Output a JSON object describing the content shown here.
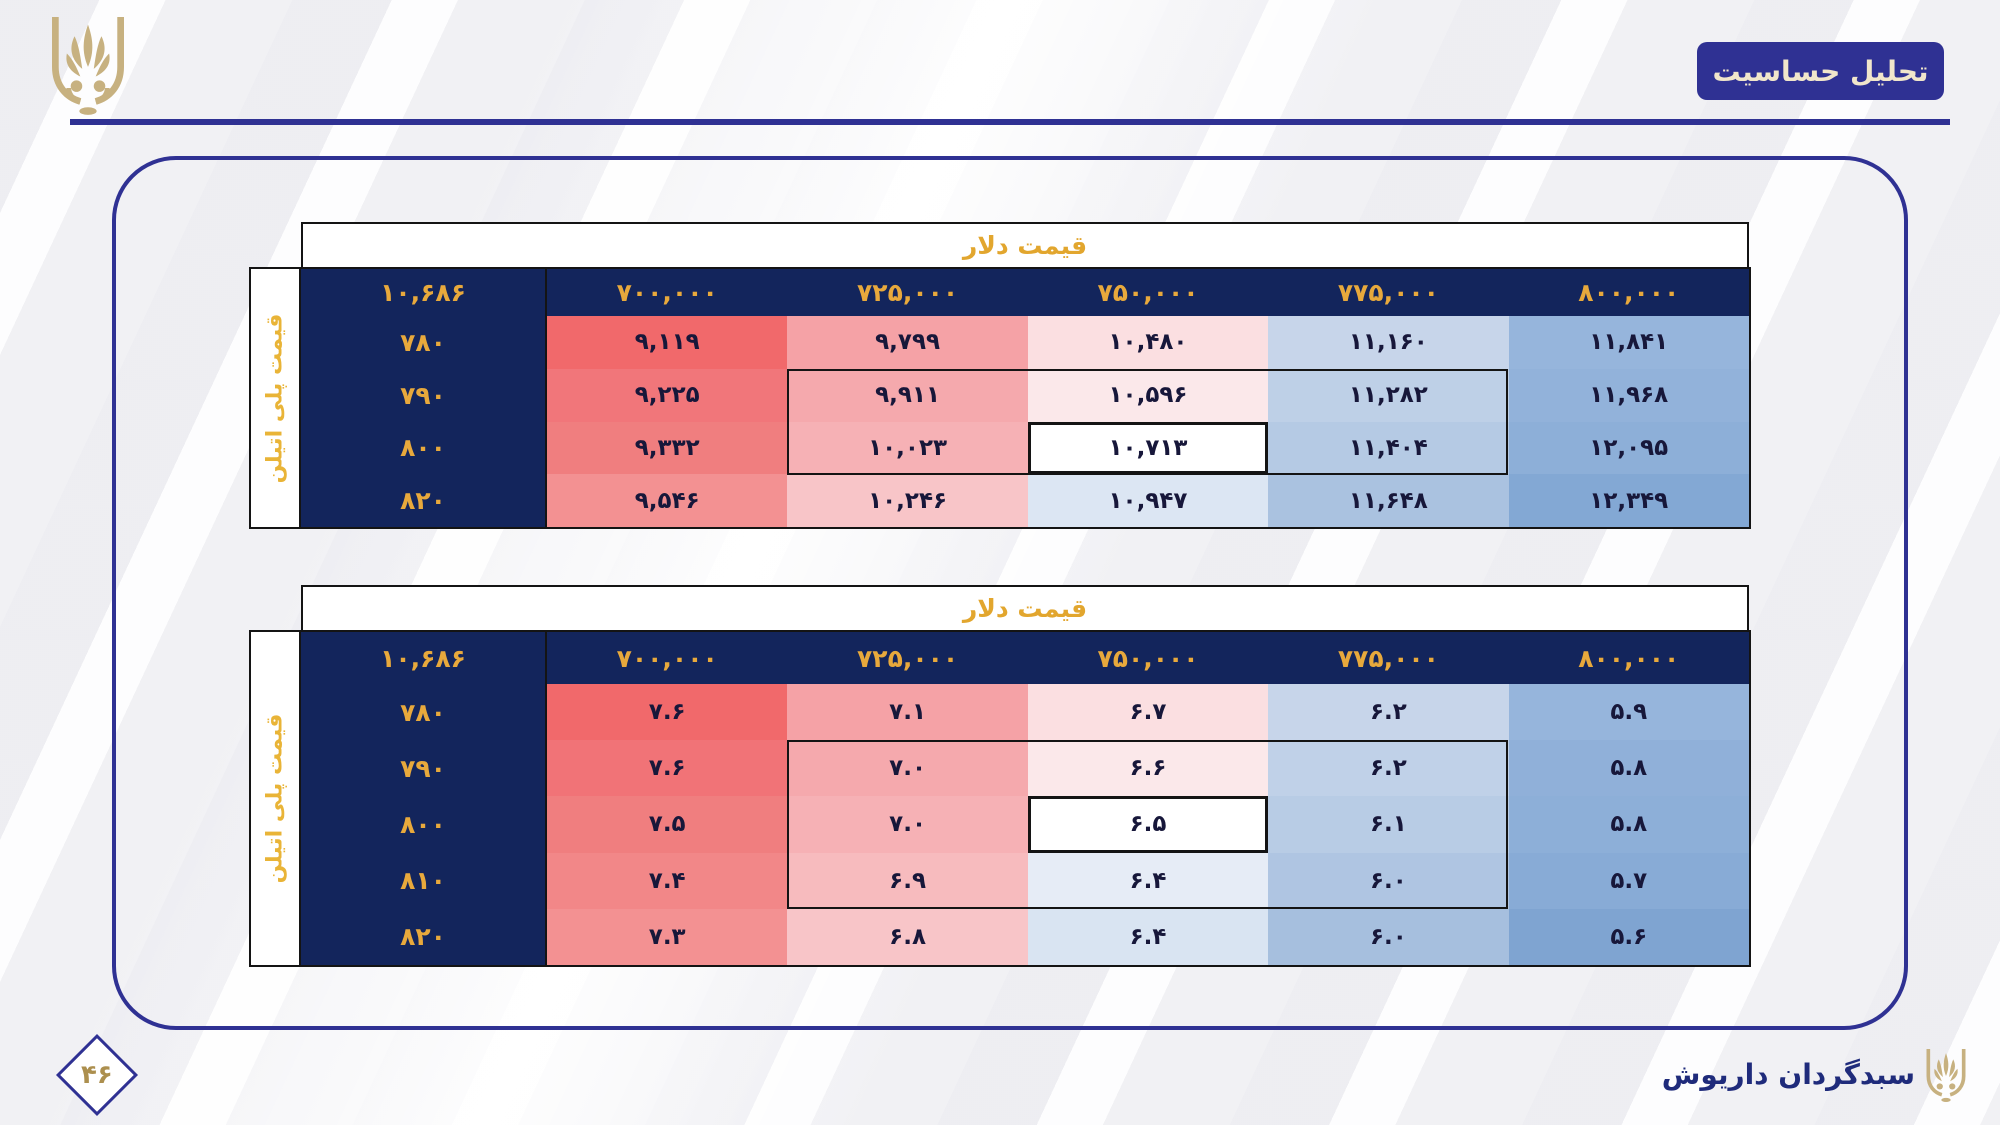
{
  "slide": {
    "title_badge": "تحلیل حساسیت",
    "page_number": "۴۶",
    "company_name": "سبدگردان داریوش",
    "logo": "palmette-emblem"
  },
  "colors": {
    "navy_accent": "#2F3193",
    "table_header_navy": "#13255C",
    "gold_text": "#E8A93C",
    "badge_text": "#F1E6CB",
    "logo_gold": "#C7B180",
    "page_number_gold": "#AC8F4E",
    "heat_red_max": "#F1696B",
    "heat_blue_max": "#7FA4D1"
  },
  "tables": [
    {
      "title": "قیمت دلار",
      "side_label": "قیمت پلی اتیلن",
      "corner_value": "۱۰,۶۸۶",
      "corner_value_numeric": 10686,
      "col_headers": [
        "۷۰۰,۰۰۰",
        "۷۲۵,۰۰۰",
        "۷۵۰,۰۰۰",
        "۷۷۵,۰۰۰",
        "۸۰۰,۰۰۰"
      ],
      "col_headers_numeric": [
        700000,
        725000,
        750000,
        775000,
        800000
      ],
      "row_headers": [
        "۷۸۰",
        "۷۹۰",
        "۸۰۰",
        "۸۲۰"
      ],
      "row_headers_numeric": [
        780,
        790,
        800,
        820
      ],
      "rows": [
        [
          "۹,۱۱۹",
          "۹,۷۹۹",
          "۱۰,۴۸۰",
          "۱۱,۱۶۰",
          "۱۱,۸۴۱"
        ],
        [
          "۹,۲۲۵",
          "۹,۹۱۱",
          "۱۰,۵۹۶",
          "۱۱,۲۸۲",
          "۱۱,۹۶۸"
        ],
        [
          "۹,۳۳۲",
          "۱۰,۰۲۳",
          "۱۰,۷۱۳",
          "۱۱,۴۰۴",
          "۱۲,۰۹۵"
        ],
        [
          "۹,۵۴۶",
          "۱۰,۲۴۶",
          "۱۰,۹۴۷",
          "۱۱,۶۴۸",
          "۱۲,۳۴۹"
        ]
      ],
      "rows_numeric": [
        [
          9119,
          9799,
          10480,
          11160,
          11841
        ],
        [
          9225,
          9911,
          10596,
          11282,
          11968
        ],
        [
          9332,
          10023,
          10713,
          11404,
          12095
        ],
        [
          9546,
          10246,
          10947,
          11648,
          12349
        ]
      ],
      "cell_colors": [
        [
          "#f1696b",
          "#f5a2a6",
          "#fbdfe1",
          "#c7d5ea",
          "#96b5dc"
        ],
        [
          "#f1767a",
          "#f5a9ad",
          "#fbe8ea",
          "#bed0e7",
          "#92b2da"
        ],
        [
          "#f07e7f",
          "#f6b1b5",
          "#ffffff",
          "#b5cae4",
          "#8dafd8"
        ],
        [
          "#f39192",
          "#f8c5c8",
          "#dce6f3",
          "#aac2e0",
          "#83a8d4"
        ]
      ],
      "highlight_cell": {
        "row": 2,
        "col": 2
      },
      "outline_range": {
        "row_start": 1,
        "row_end": 2,
        "col_start": 1,
        "col_end": 3
      }
    },
    {
      "title": "قیمت دلار",
      "side_label": "قیمت پلی اتیلن",
      "corner_value": "۱۰,۶۸۶",
      "corner_value_numeric": 10686,
      "col_headers": [
        "۷۰۰,۰۰۰",
        "۷۲۵,۰۰۰",
        "۷۵۰,۰۰۰",
        "۷۷۵,۰۰۰",
        "۸۰۰,۰۰۰"
      ],
      "col_headers_numeric": [
        700000,
        725000,
        750000,
        775000,
        800000
      ],
      "row_headers": [
        "۷۸۰",
        "۷۹۰",
        "۸۰۰",
        "۸۱۰",
        "۸۲۰"
      ],
      "row_headers_numeric": [
        780,
        790,
        800,
        810,
        820
      ],
      "rows": [
        [
          "۷.۶",
          "۷.۱",
          "۶.۷",
          "۶.۲",
          "۵.۹"
        ],
        [
          "۷.۶",
          "۷.۰",
          "۶.۶",
          "۶.۲",
          "۵.۸"
        ],
        [
          "۷.۵",
          "۷.۰",
          "۶.۵",
          "۶.۱",
          "۵.۸"
        ],
        [
          "۷.۴",
          "۶.۹",
          "۶.۴",
          "۶.۰",
          "۵.۷"
        ],
        [
          "۷.۳",
          "۶.۸",
          "۶.۴",
          "۶.۰",
          "۵.۶"
        ]
      ],
      "rows_numeric": [
        [
          7.6,
          7.1,
          6.7,
          6.2,
          5.9
        ],
        [
          7.6,
          7.0,
          6.6,
          6.2,
          5.8
        ],
        [
          7.5,
          7.0,
          6.5,
          6.1,
          5.8
        ],
        [
          7.4,
          6.9,
          6.4,
          6.0,
          5.7
        ],
        [
          7.3,
          6.8,
          6.4,
          6.0,
          5.6
        ]
      ],
      "cell_colors": [
        [
          "#f1696b",
          "#f5a2a6",
          "#fbdfe1",
          "#c7d5ea",
          "#96b5dc"
        ],
        [
          "#f17377",
          "#f5a9ad",
          "#fbe8ea",
          "#c0d1e8",
          "#90b0d9"
        ],
        [
          "#f07e7f",
          "#f6b1b5",
          "#ffffff",
          "#b8cce5",
          "#8dafd8"
        ],
        [
          "#f28788",
          "#f7bbbe",
          "#e6ecf6",
          "#afc5e2",
          "#88abd6"
        ],
        [
          "#f39192",
          "#f8c5c8",
          "#d9e4f2",
          "#a6bfde",
          "#7fa4d1"
        ]
      ],
      "highlight_cell": {
        "row": 2,
        "col": 2
      },
      "outline_range": {
        "row_start": 1,
        "row_end": 3,
        "col_start": 1,
        "col_end": 3
      }
    }
  ]
}
